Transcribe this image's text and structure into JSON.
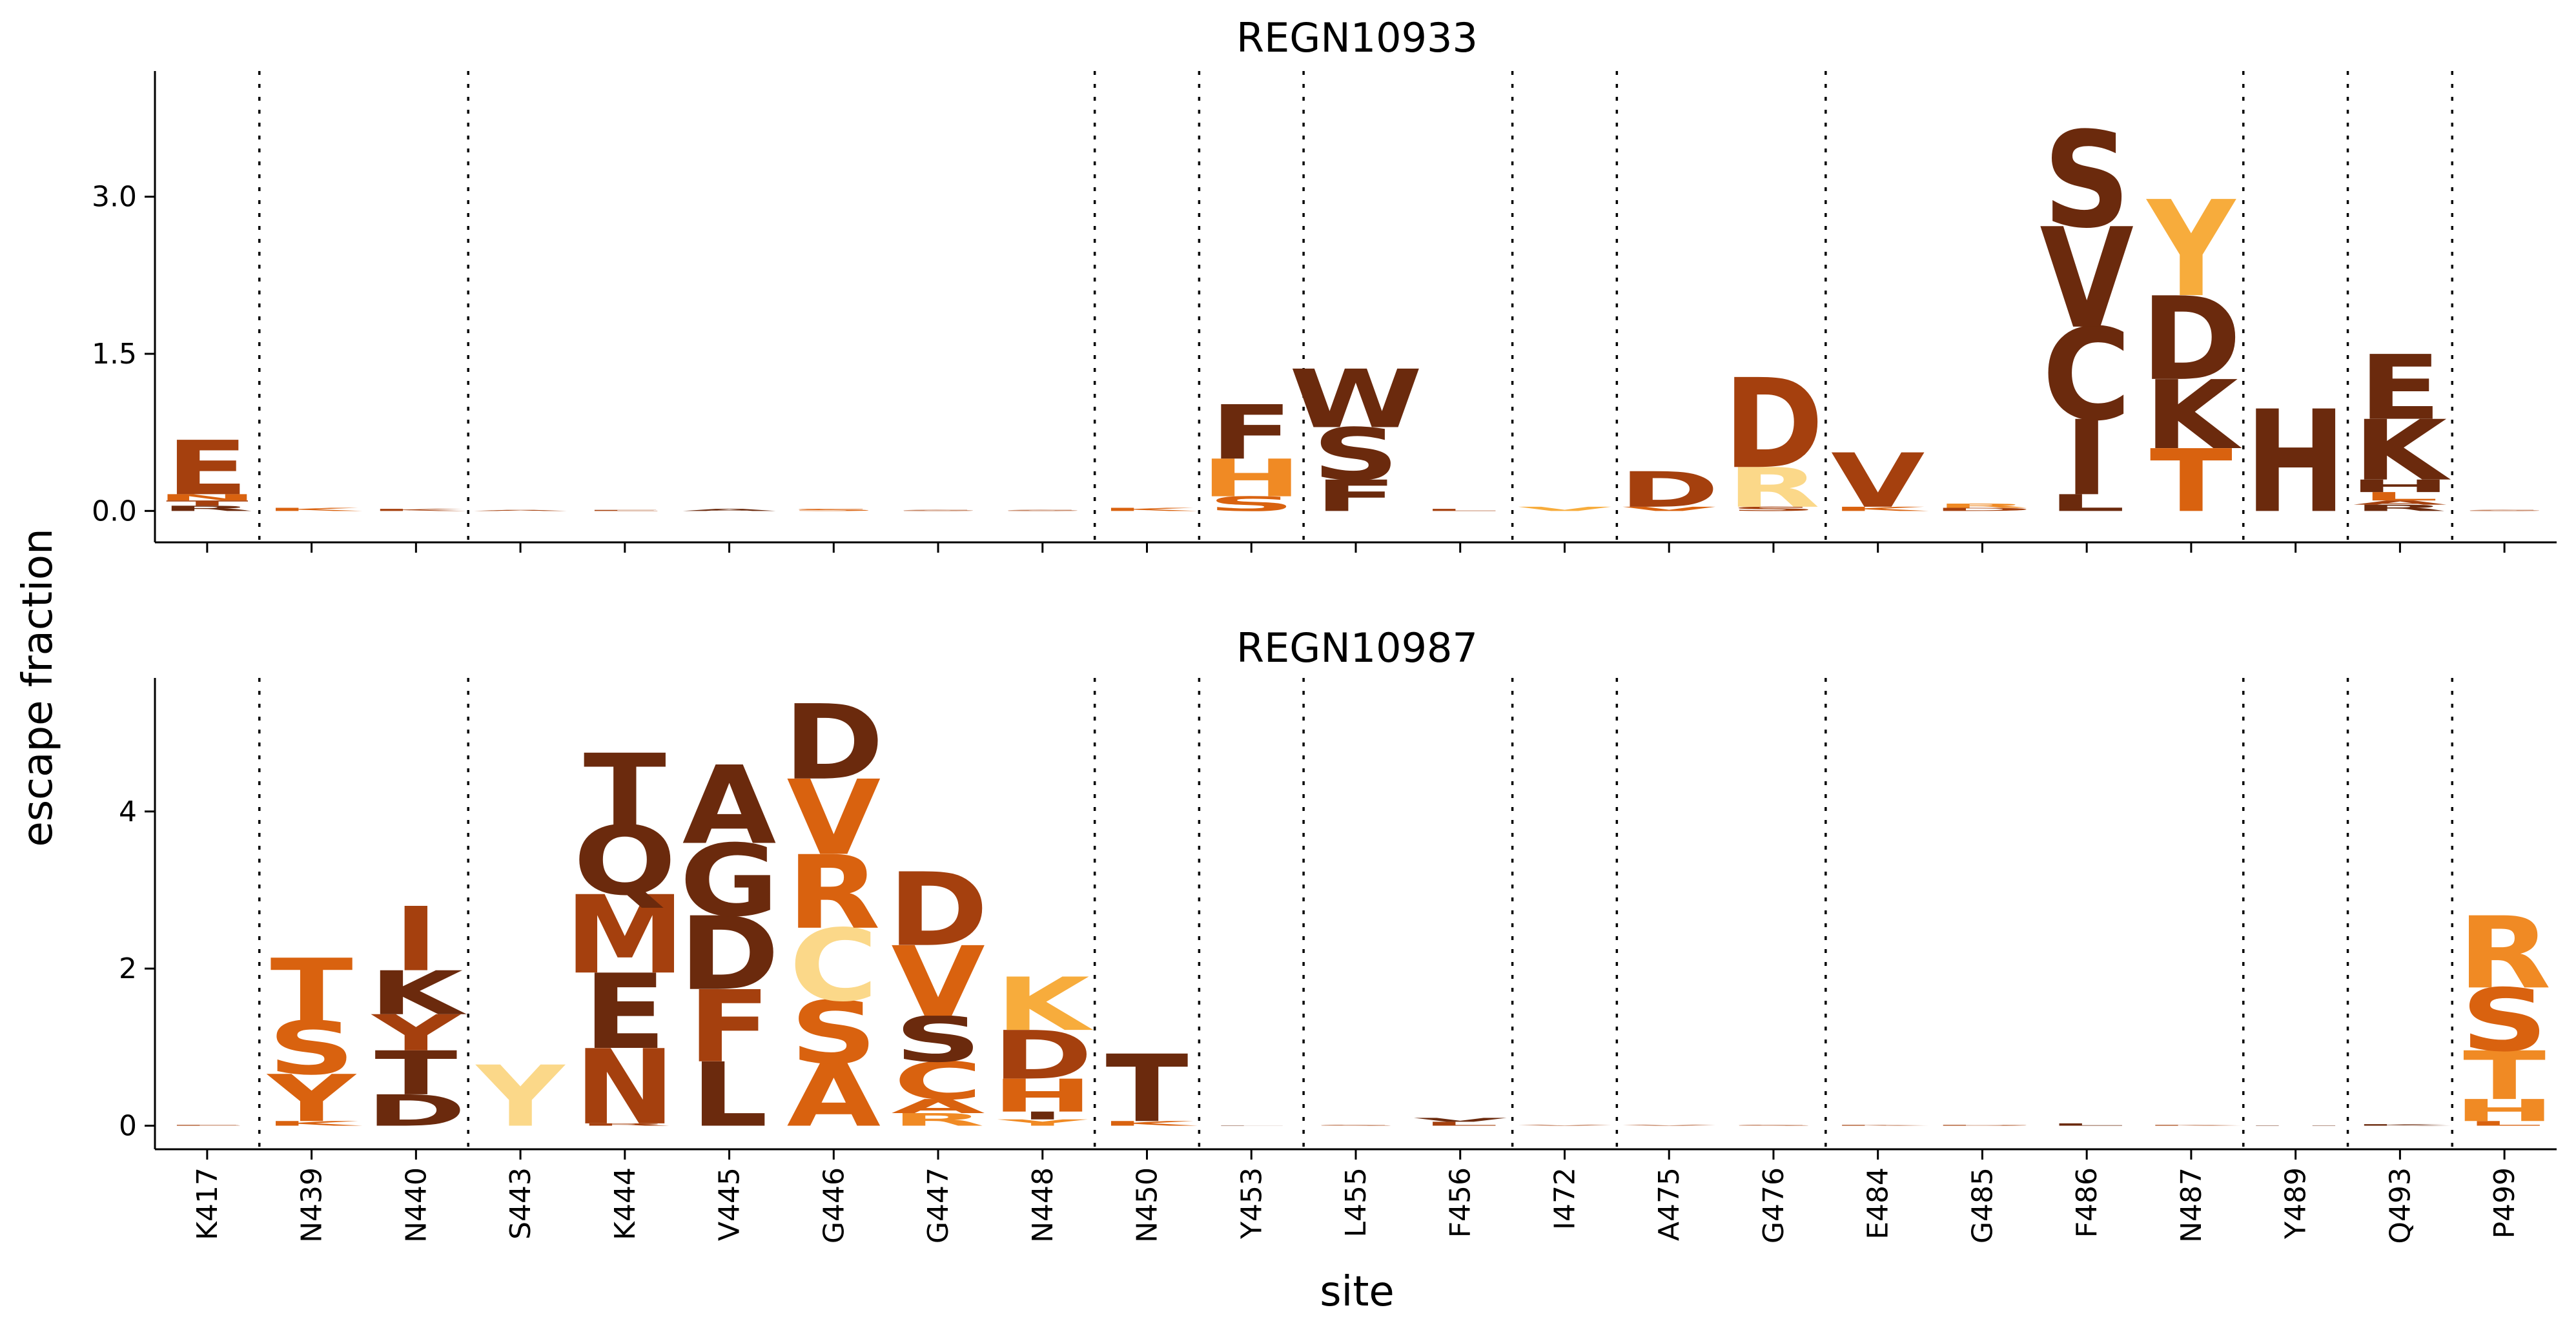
{
  "chart_data": {
    "type": "logo",
    "xlabel": "site",
    "ylabel": "escape fraction",
    "sites": [
      "K417",
      "N439",
      "N440",
      "S443",
      "K444",
      "V445",
      "G446",
      "G447",
      "N448",
      "N450",
      "Y453",
      "L455",
      "F456",
      "I472",
      "A475",
      "G476",
      "E484",
      "G485",
      "F486",
      "N487",
      "Y489",
      "Q493",
      "P499"
    ],
    "group_boundaries_after": [
      "K417",
      "N440",
      "N448",
      "N450",
      "Y453",
      "F456",
      "I472",
      "G476",
      "N487",
      "Y489",
      "Q493"
    ],
    "colors": {
      "dark_brown": "#6b2a0d",
      "rust": "#a5400e",
      "orange": "#d9620f",
      "light_orange": "#f08a24",
      "amber": "#f7ac3c",
      "pale_yellow": "#fbd889"
    },
    "panels": [
      {
        "title": "REGN10933",
        "ylim": [
          -0.3,
          4.2
        ],
        "yticks": [
          0.0,
          1.5,
          3.0
        ],
        "ytick_labels": [
          "0.0",
          "1.5",
          "3.0"
        ],
        "stacks": [
          {
            "site": "K417",
            "letters": [
              {
                "aa": "R",
                "height": 0.05,
                "color": "#6b2a0d"
              },
              {
                "aa": "T",
                "height": 0.05,
                "color": "#a5400e"
              },
              {
                "aa": "N",
                "height": 0.06,
                "color": "#d9620f"
              },
              {
                "aa": "E",
                "height": 0.52,
                "color": "#a5400e"
              }
            ]
          },
          {
            "site": "N439",
            "letters": [
              {
                "aa": "K",
                "height": 0.03,
                "color": "#d9620f"
              }
            ]
          },
          {
            "site": "N440",
            "letters": [
              {
                "aa": "K",
                "height": 0.02,
                "color": "#a5400e"
              }
            ]
          },
          {
            "site": "S443",
            "letters": [
              {
                "aa": "A",
                "height": 0.01,
                "color": "#a5400e"
              }
            ]
          },
          {
            "site": "K444",
            "letters": [
              {
                "aa": "E",
                "height": 0.01,
                "color": "#a5400e"
              }
            ]
          },
          {
            "site": "V445",
            "letters": [
              {
                "aa": "A",
                "height": 0.02,
                "color": "#6b2a0d"
              }
            ]
          },
          {
            "site": "G446",
            "letters": [
              {
                "aa": "S",
                "height": 0.02,
                "color": "#d9620f"
              }
            ]
          },
          {
            "site": "G447",
            "letters": [
              {
                "aa": "S",
                "height": 0.01,
                "color": "#a5400e"
              }
            ]
          },
          {
            "site": "N448",
            "letters": [
              {
                "aa": "S",
                "height": 0.01,
                "color": "#a5400e"
              }
            ]
          },
          {
            "site": "N450",
            "letters": [
              {
                "aa": "K",
                "height": 0.03,
                "color": "#d9620f"
              }
            ]
          },
          {
            "site": "Y453",
            "letters": [
              {
                "aa": "S",
                "height": 0.14,
                "color": "#d9620f"
              },
              {
                "aa": "H",
                "height": 0.36,
                "color": "#f08a24"
              },
              {
                "aa": "F",
                "height": 0.52,
                "color": "#6b2a0d"
              }
            ]
          },
          {
            "site": "L455",
            "letters": [
              {
                "aa": "F",
                "height": 0.3,
                "color": "#6b2a0d"
              },
              {
                "aa": "S",
                "height": 0.5,
                "color": "#6b2a0d"
              },
              {
                "aa": "W",
                "height": 0.56,
                "color": "#6b2a0d"
              }
            ]
          },
          {
            "site": "F456",
            "letters": [
              {
                "aa": "L",
                "height": 0.02,
                "color": "#a5400e"
              }
            ]
          },
          {
            "site": "I472",
            "letters": [
              {
                "aa": "V",
                "height": 0.04,
                "color": "#f7ac3c"
              }
            ]
          },
          {
            "site": "A475",
            "letters": [
              {
                "aa": "V",
                "height": 0.04,
                "color": "#d9620f"
              },
              {
                "aa": "D",
                "height": 0.34,
                "color": "#a5400e"
              }
            ]
          },
          {
            "site": "G476",
            "letters": [
              {
                "aa": "S",
                "height": 0.04,
                "color": "#a5400e"
              },
              {
                "aa": "R",
                "height": 0.38,
                "color": "#fbd889"
              },
              {
                "aa": "D",
                "height": 0.86,
                "color": "#a5400e"
              }
            ]
          },
          {
            "site": "E484",
            "letters": [
              {
                "aa": "K",
                "height": 0.04,
                "color": "#d9620f"
              },
              {
                "aa": "V",
                "height": 0.52,
                "color": "#a5400e"
              }
            ]
          },
          {
            "site": "G485",
            "letters": [
              {
                "aa": "D",
                "height": 0.03,
                "color": "#a5400e"
              },
              {
                "aa": "R",
                "height": 0.04,
                "color": "#f08a24"
              }
            ]
          },
          {
            "site": "F486",
            "letters": [
              {
                "aa": "L",
                "height": 0.16,
                "color": "#6b2a0d"
              },
              {
                "aa": "I",
                "height": 0.72,
                "color": "#6b2a0d"
              },
              {
                "aa": "C",
                "height": 0.88,
                "color": "#6b2a0d"
              },
              {
                "aa": "V",
                "height": 0.96,
                "color": "#6b2a0d"
              },
              {
                "aa": "S",
                "height": 0.92,
                "color": "#6b2a0d"
              }
            ]
          },
          {
            "site": "N487",
            "letters": [
              {
                "aa": "T",
                "height": 0.6,
                "color": "#d9620f"
              },
              {
                "aa": "K",
                "height": 0.66,
                "color": "#6b2a0d"
              },
              {
                "aa": "D",
                "height": 0.8,
                "color": "#6b2a0d"
              },
              {
                "aa": "Y",
                "height": 0.92,
                "color": "#f7ac3c"
              }
            ]
          },
          {
            "site": "Y489",
            "letters": [
              {
                "aa": "H",
                "height": 0.98,
                "color": "#6b2a0d"
              }
            ]
          },
          {
            "site": "Q493",
            "letters": [
              {
                "aa": "R",
                "height": 0.06,
                "color": "#6b2a0d"
              },
              {
                "aa": "A",
                "height": 0.04,
                "color": "#a5400e"
              },
              {
                "aa": "L",
                "height": 0.08,
                "color": "#d9620f"
              },
              {
                "aa": "H",
                "height": 0.12,
                "color": "#6b2a0d"
              },
              {
                "aa": "K",
                "height": 0.58,
                "color": "#6b2a0d"
              },
              {
                "aa": "E",
                "height": 0.62,
                "color": "#6b2a0d"
              }
            ]
          },
          {
            "site": "P499",
            "letters": [
              {
                "aa": "S",
                "height": 0.01,
                "color": "#a5400e"
              }
            ]
          }
        ]
      },
      {
        "title": "REGN10987",
        "ylim": [
          -0.3,
          5.7
        ],
        "yticks": [
          0,
          2,
          4
        ],
        "ytick_labels": [
          "0",
          "2",
          "4"
        ],
        "stacks": [
          {
            "site": "K417",
            "letters": [
              {
                "aa": "E",
                "height": 0.01,
                "color": "#a5400e"
              }
            ]
          },
          {
            "site": "N439",
            "letters": [
              {
                "aa": "K",
                "height": 0.06,
                "color": "#d9620f"
              },
              {
                "aa": "Y",
                "height": 0.6,
                "color": "#d9620f"
              },
              {
                "aa": "S",
                "height": 0.68,
                "color": "#d9620f"
              },
              {
                "aa": "T",
                "height": 0.8,
                "color": "#d9620f"
              }
            ]
          },
          {
            "site": "N440",
            "letters": [
              {
                "aa": "D",
                "height": 0.4,
                "color": "#6b2a0d"
              },
              {
                "aa": "T",
                "height": 0.56,
                "color": "#6b2a0d"
              },
              {
                "aa": "Y",
                "height": 0.46,
                "color": "#a5400e"
              },
              {
                "aa": "K",
                "height": 0.56,
                "color": "#6b2a0d"
              },
              {
                "aa": "I",
                "height": 0.82,
                "color": "#a5400e"
              }
            ]
          },
          {
            "site": "S443",
            "letters": [
              {
                "aa": "Y",
                "height": 0.78,
                "color": "#fbd889"
              }
            ]
          },
          {
            "site": "K444",
            "letters": [
              {
                "aa": "R",
                "height": 0.03,
                "color": "#a5400e"
              },
              {
                "aa": "N",
                "height": 0.96,
                "color": "#a5400e"
              },
              {
                "aa": "E",
                "height": 0.96,
                "color": "#6b2a0d"
              },
              {
                "aa": "M",
                "height": 1.0,
                "color": "#a5400e"
              },
              {
                "aa": "Q",
                "height": 0.88,
                "color": "#6b2a0d"
              },
              {
                "aa": "T",
                "height": 0.92,
                "color": "#6b2a0d"
              }
            ]
          },
          {
            "site": "V445",
            "letters": [
              {
                "aa": "L",
                "height": 0.82,
                "color": "#6b2a0d"
              },
              {
                "aa": "F",
                "height": 0.92,
                "color": "#a5400e"
              },
              {
                "aa": "D",
                "height": 0.94,
                "color": "#6b2a0d"
              },
              {
                "aa": "G",
                "height": 0.92,
                "color": "#6b2a0d"
              },
              {
                "aa": "A",
                "height": 1.0,
                "color": "#6b2a0d"
              }
            ]
          },
          {
            "site": "G446",
            "letters": [
              {
                "aa": "A",
                "height": 0.8,
                "color": "#d9620f"
              },
              {
                "aa": "S",
                "height": 0.8,
                "color": "#d9620f"
              },
              {
                "aa": "C",
                "height": 0.92,
                "color": "#fbd889"
              },
              {
                "aa": "R",
                "height": 0.94,
                "color": "#d9620f"
              },
              {
                "aa": "V",
                "height": 0.96,
                "color": "#d9620f"
              },
              {
                "aa": "D",
                "height": 0.96,
                "color": "#6b2a0d"
              }
            ]
          },
          {
            "site": "G447",
            "letters": [
              {
                "aa": "R",
                "height": 0.16,
                "color": "#f08a24"
              },
              {
                "aa": "A",
                "height": 0.18,
                "color": "#d9620f"
              },
              {
                "aa": "C",
                "height": 0.48,
                "color": "#d9620f"
              },
              {
                "aa": "S",
                "height": 0.58,
                "color": "#6b2a0d"
              },
              {
                "aa": "V",
                "height": 0.9,
                "color": "#d9620f"
              },
              {
                "aa": "D",
                "height": 0.94,
                "color": "#a5400e"
              }
            ]
          },
          {
            "site": "N448",
            "letters": [
              {
                "aa": "Y",
                "height": 0.08,
                "color": "#f08a24"
              },
              {
                "aa": "I",
                "height": 0.1,
                "color": "#6b2a0d"
              },
              {
                "aa": "H",
                "height": 0.42,
                "color": "#d9620f"
              },
              {
                "aa": "D",
                "height": 0.62,
                "color": "#a5400e"
              },
              {
                "aa": "K",
                "height": 0.68,
                "color": "#f7ac3c"
              }
            ]
          },
          {
            "site": "N450",
            "letters": [
              {
                "aa": "K",
                "height": 0.06,
                "color": "#d9620f"
              },
              {
                "aa": "T",
                "height": 0.86,
                "color": "#6b2a0d"
              }
            ]
          },
          {
            "site": "Y453",
            "letters": [
              {
                "aa": "F",
                "height": 0.0,
                "color": "#6b2a0d"
              }
            ]
          },
          {
            "site": "L455",
            "letters": [
              {
                "aa": "S",
                "height": 0.01,
                "color": "#a5400e"
              }
            ]
          },
          {
            "site": "F456",
            "letters": [
              {
                "aa": "L",
                "height": 0.05,
                "color": "#a5400e"
              },
              {
                "aa": "V",
                "height": 0.05,
                "color": "#6b2a0d"
              }
            ]
          },
          {
            "site": "I472",
            "letters": [
              {
                "aa": "V",
                "height": 0.01,
                "color": "#a5400e"
              }
            ]
          },
          {
            "site": "A475",
            "letters": [
              {
                "aa": "V",
                "height": 0.01,
                "color": "#a5400e"
              }
            ]
          },
          {
            "site": "G476",
            "letters": [
              {
                "aa": "S",
                "height": 0.01,
                "color": "#a5400e"
              }
            ]
          },
          {
            "site": "E484",
            "letters": [
              {
                "aa": "K",
                "height": 0.01,
                "color": "#a5400e"
              }
            ]
          },
          {
            "site": "G485",
            "letters": [
              {
                "aa": "D",
                "height": 0.01,
                "color": "#a5400e"
              }
            ]
          },
          {
            "site": "F486",
            "letters": [
              {
                "aa": "L",
                "height": 0.03,
                "color": "#6b2a0d"
              }
            ]
          },
          {
            "site": "N487",
            "letters": [
              {
                "aa": "K",
                "height": 0.01,
                "color": "#a5400e"
              }
            ]
          },
          {
            "site": "Y489",
            "letters": [
              {
                "aa": "H",
                "height": 0.0,
                "color": "#6b2a0d"
              }
            ]
          },
          {
            "site": "Q493",
            "letters": [
              {
                "aa": "K",
                "height": 0.02,
                "color": "#6b2a0d"
              }
            ]
          },
          {
            "site": "P499",
            "letters": [
              {
                "aa": "L",
                "height": 0.06,
                "color": "#d9620f"
              },
              {
                "aa": "H",
                "height": 0.28,
                "color": "#f08a24"
              },
              {
                "aa": "T",
                "height": 0.62,
                "color": "#f08a24"
              },
              {
                "aa": "S",
                "height": 0.8,
                "color": "#d9620f"
              },
              {
                "aa": "R",
                "height": 0.92,
                "color": "#f08a24"
              }
            ]
          }
        ]
      }
    ]
  }
}
